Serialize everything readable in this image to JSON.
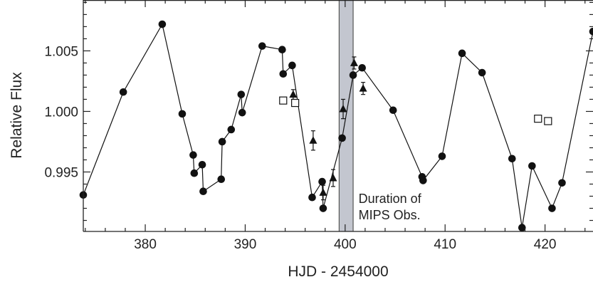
{
  "chart_data": {
    "type": "scatter",
    "xlabel": "HJD - 2454000",
    "ylabel": "Relative Flux",
    "xlim": [
      373.8,
      424.8
    ],
    "ylim": [
      0.99009,
      1.0092
    ],
    "x_ticks": [
      380,
      390,
      400,
      410,
      420
    ],
    "x_tick_labels": [
      "380",
      "390",
      "400",
      "410",
      "420"
    ],
    "y_ticks": [
      0.995,
      1.0,
      1.005
    ],
    "y_tick_labels": [
      "0.995",
      "1.000",
      "1.005"
    ],
    "grid": false,
    "colors": {
      "axis": "#222222",
      "band_fill": "#c3c6cf",
      "band_edge": "#555555"
    },
    "annotation": {
      "lines": [
        "Duration of",
        "MIPS Obs."
      ],
      "x": 400.7,
      "y": 0.9921
    },
    "mips_band": {
      "x_start": 399.4,
      "x_end": 400.8
    },
    "series": [
      {
        "marker": "circle",
        "connected": true,
        "points": [
          [
            373.8,
            0.9931
          ],
          [
            377.8,
            1.0016
          ],
          [
            381.7,
            1.0072
          ],
          [
            383.7,
            0.9998
          ],
          [
            384.8,
            0.9964
          ],
          [
            384.9,
            0.9949
          ],
          [
            385.7,
            0.9956
          ],
          [
            385.8,
            0.9934
          ],
          [
            387.6,
            0.9944
          ],
          [
            387.7,
            0.9975
          ],
          [
            388.6,
            0.9985
          ],
          [
            389.6,
            1.0014
          ],
          [
            389.7,
            0.9999
          ],
          [
            391.7,
            1.0054
          ],
          [
            393.7,
            1.0051
          ],
          [
            393.8,
            1.0031
          ],
          [
            394.7,
            1.0038
          ],
          [
            396.7,
            0.9929
          ],
          [
            397.7,
            0.9942
          ],
          [
            397.8,
            0.992
          ],
          [
            399.7,
            0.9978
          ],
          [
            400.8,
            1.003
          ],
          [
            401.7,
            1.0036
          ],
          [
            404.8,
            1.0001
          ],
          [
            407.7,
            0.9946
          ],
          [
            407.8,
            0.9943
          ],
          [
            409.7,
            0.9963
          ],
          [
            411.7,
            1.0048
          ],
          [
            413.7,
            1.0032
          ],
          [
            416.7,
            0.9961
          ],
          [
            417.7,
            0.9904
          ],
          [
            418.7,
            0.9955
          ],
          [
            420.7,
            0.992
          ],
          [
            421.7,
            0.9941
          ],
          [
            424.8,
            1.0066
          ]
        ]
      },
      {
        "marker": "triangle",
        "connected": false,
        "points": [
          [
            394.8,
            1.0014,
            0.0004
          ],
          [
            396.8,
            0.9976,
            0.0008
          ],
          [
            397.8,
            0.9933,
            0.0006
          ],
          [
            398.8,
            0.9945,
            0.0007
          ],
          [
            399.8,
            1.0002,
            0.0008
          ],
          [
            400.9,
            1.004,
            0.0005
          ],
          [
            401.8,
            1.0019,
            0.0005
          ]
        ]
      },
      {
        "marker": "open-square",
        "connected": false,
        "points": [
          [
            393.8,
            1.0009
          ],
          [
            395.0,
            1.0007
          ],
          [
            419.3,
            0.9994
          ],
          [
            420.3,
            0.9992
          ]
        ]
      }
    ]
  }
}
